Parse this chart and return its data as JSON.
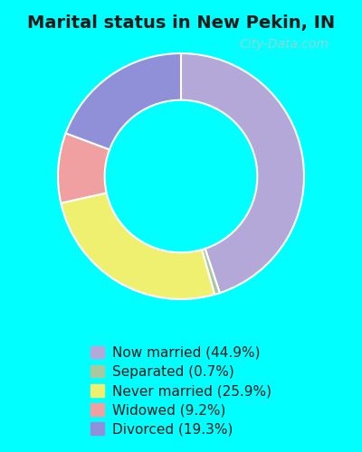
{
  "title": "Marital status in New Pekin, IN",
  "title_fontsize": 14,
  "title_fontweight": "bold",
  "bg_color": "#00ffff",
  "chart_bg_color": "#e8f2e8",
  "slices": [
    {
      "label": "Now married (44.9%)",
      "value": 44.9,
      "color": "#b3a8d8"
    },
    {
      "label": "Separated (0.7%)",
      "value": 0.7,
      "color": "#a8c8a0"
    },
    {
      "label": "Never married (25.9%)",
      "value": 25.9,
      "color": "#f0f070"
    },
    {
      "label": "Widowed (9.2%)",
      "value": 9.2,
      "color": "#f0a0a0"
    },
    {
      "label": "Divorced (19.3%)",
      "value": 19.3,
      "color": "#9090d8"
    }
  ],
  "legend_fontsize": 11,
  "donut_width": 0.38,
  "watermark": "City-Data.com",
  "watermark_color": "#aacccc",
  "watermark_fontsize": 10,
  "startangle": 90
}
